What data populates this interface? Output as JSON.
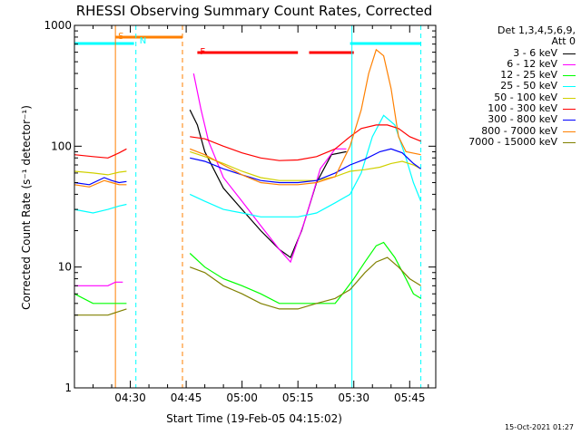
{
  "chart_data": {
    "type": "line",
    "title": "RHESSI Observing Summary Count Rates, Corrected",
    "xlabel": "Start Time (19-Feb-05 04:15:02)",
    "ylabel": "Corrected Count Rate (s⁻¹ detector⁻¹)",
    "yscale": "log",
    "ylim": [
      1,
      1000
    ],
    "xlim_minutes": [
      0,
      97
    ],
    "x_tick_minutes": [
      15,
      30,
      45,
      60,
      75,
      90
    ],
    "x_tick_labels": [
      "04:30",
      "04:45",
      "05:00",
      "05:15",
      "05:30",
      "05:45"
    ],
    "y_tick_values": [
      1,
      10,
      100,
      1000
    ],
    "y_tick_labels": [
      "1",
      "10",
      "100",
      "1000"
    ],
    "legend_header": [
      "Det 1,3,4,5,6,9,",
      "Att 0"
    ],
    "series": [
      {
        "name": "3 - 6 keV",
        "color": "#000000",
        "points": [
          [
            31,
            200
          ],
          [
            33,
            150
          ],
          [
            35,
            90
          ],
          [
            40,
            45
          ],
          [
            45,
            30
          ],
          [
            50,
            20
          ],
          [
            55,
            14
          ],
          [
            58,
            12
          ],
          [
            61,
            20
          ],
          [
            65,
            50
          ],
          [
            69,
            85
          ],
          [
            73,
            90
          ]
        ]
      },
      {
        "name": "6 - 12 keV",
        "color": "#ff00ff",
        "points": [
          [
            0,
            7
          ],
          [
            3,
            7
          ],
          [
            6,
            7
          ],
          [
            9,
            7
          ],
          [
            11,
            7.5
          ],
          [
            13,
            7.5
          ],
          [
            32,
            400
          ],
          [
            34,
            200
          ],
          [
            36,
            110
          ],
          [
            40,
            55
          ],
          [
            45,
            35
          ],
          [
            50,
            22
          ],
          [
            55,
            14
          ],
          [
            58,
            11
          ],
          [
            62,
            25
          ],
          [
            66,
            65
          ],
          [
            70,
            95
          ],
          [
            73,
            95
          ]
        ]
      },
      {
        "name": "12 - 25 keV",
        "color": "#00ff00",
        "points": [
          [
            0,
            6
          ],
          [
            5,
            5
          ],
          [
            9,
            5
          ],
          [
            14,
            5
          ],
          [
            31,
            13
          ],
          [
            35,
            10
          ],
          [
            40,
            8
          ],
          [
            45,
            7
          ],
          [
            50,
            6
          ],
          [
            55,
            5
          ],
          [
            60,
            5
          ],
          [
            65,
            5
          ],
          [
            70,
            5
          ],
          [
            72,
            6
          ],
          [
            75,
            8
          ],
          [
            78,
            11
          ],
          [
            81,
            15
          ],
          [
            83,
            16
          ],
          [
            86,
            12
          ],
          [
            89,
            8
          ],
          [
            91,
            6
          ],
          [
            93,
            5.5
          ]
        ]
      },
      {
        "name": "25 - 50 keV",
        "color": "#00ffff",
        "points": [
          [
            0,
            30
          ],
          [
            5,
            28
          ],
          [
            9,
            30
          ],
          [
            12,
            32
          ],
          [
            14,
            33
          ],
          [
            31,
            40
          ],
          [
            35,
            35
          ],
          [
            40,
            30
          ],
          [
            45,
            28
          ],
          [
            50,
            26
          ],
          [
            55,
            26
          ],
          [
            60,
            26
          ],
          [
            65,
            28
          ],
          [
            70,
            34
          ],
          [
            74,
            40
          ],
          [
            77,
            60
          ],
          [
            80,
            120
          ],
          [
            83,
            180
          ],
          [
            86,
            150
          ],
          [
            89,
            80
          ],
          [
            91,
            50
          ],
          [
            93,
            35
          ]
        ]
      },
      {
        "name": "50 - 100 keV",
        "color": "#d0d000",
        "points": [
          [
            0,
            62
          ],
          [
            5,
            60
          ],
          [
            9,
            58
          ],
          [
            12,
            61
          ],
          [
            14,
            62
          ],
          [
            31,
            90
          ],
          [
            35,
            82
          ],
          [
            40,
            72
          ],
          [
            45,
            62
          ],
          [
            50,
            55
          ],
          [
            55,
            52
          ],
          [
            60,
            52
          ],
          [
            65,
            52
          ],
          [
            70,
            56
          ],
          [
            74,
            62
          ],
          [
            78,
            64
          ],
          [
            82,
            67
          ],
          [
            85,
            72
          ],
          [
            88,
            75
          ],
          [
            91,
            70
          ],
          [
            93,
            65
          ]
        ]
      },
      {
        "name": "100 - 300 keV",
        "color": "#ff0000",
        "points": [
          [
            0,
            85
          ],
          [
            5,
            82
          ],
          [
            9,
            80
          ],
          [
            12,
            88
          ],
          [
            14,
            95
          ],
          [
            31,
            120
          ],
          [
            35,
            115
          ],
          [
            40,
            100
          ],
          [
            45,
            88
          ],
          [
            50,
            80
          ],
          [
            55,
            76
          ],
          [
            60,
            77
          ],
          [
            65,
            82
          ],
          [
            70,
            95
          ],
          [
            74,
            120
          ],
          [
            77,
            140
          ],
          [
            81,
            150
          ],
          [
            84,
            150
          ],
          [
            87,
            140
          ],
          [
            90,
            120
          ],
          [
            93,
            110
          ]
        ]
      },
      {
        "name": "300 - 800 keV",
        "color": "#0000ff",
        "points": [
          [
            0,
            50
          ],
          [
            4,
            48
          ],
          [
            8,
            55
          ],
          [
            10,
            52
          ],
          [
            12,
            50
          ],
          [
            14,
            51
          ],
          [
            31,
            80
          ],
          [
            35,
            75
          ],
          [
            40,
            65
          ],
          [
            45,
            58
          ],
          [
            50,
            52
          ],
          [
            55,
            50
          ],
          [
            60,
            50
          ],
          [
            65,
            52
          ],
          [
            70,
            60
          ],
          [
            74,
            70
          ],
          [
            78,
            78
          ],
          [
            82,
            90
          ],
          [
            85,
            95
          ],
          [
            88,
            88
          ],
          [
            91,
            72
          ],
          [
            93,
            65
          ]
        ]
      },
      {
        "name": "800 - 7000 keV",
        "color": "#ff8000",
        "points": [
          [
            0,
            48
          ],
          [
            4,
            46
          ],
          [
            8,
            52
          ],
          [
            10,
            50
          ],
          [
            12,
            48
          ],
          [
            14,
            48
          ],
          [
            31,
            95
          ],
          [
            35,
            85
          ],
          [
            40,
            70
          ],
          [
            45,
            58
          ],
          [
            50,
            50
          ],
          [
            55,
            48
          ],
          [
            60,
            48
          ],
          [
            65,
            50
          ],
          [
            70,
            56
          ],
          [
            74,
            100
          ],
          [
            77,
            200
          ],
          [
            79,
            400
          ],
          [
            81,
            630
          ],
          [
            83,
            560
          ],
          [
            85,
            300
          ],
          [
            87,
            120
          ],
          [
            89,
            90
          ],
          [
            93,
            85
          ]
        ]
      },
      {
        "name": "7000 - 15000 keV",
        "color": "#808000",
        "points": [
          [
            0,
            4
          ],
          [
            5,
            4
          ],
          [
            9,
            4
          ],
          [
            14,
            4.5
          ],
          [
            31,
            10
          ],
          [
            35,
            9
          ],
          [
            40,
            7
          ],
          [
            45,
            6
          ],
          [
            50,
            5
          ],
          [
            55,
            4.5
          ],
          [
            60,
            4.5
          ],
          [
            65,
            5
          ],
          [
            70,
            5.5
          ],
          [
            74,
            6.5
          ],
          [
            78,
            9
          ],
          [
            81,
            11
          ],
          [
            84,
            12
          ],
          [
            87,
            10
          ],
          [
            90,
            8
          ],
          [
            93,
            7
          ]
        ]
      }
    ],
    "attenuator_bars": [
      {
        "start": 0,
        "end": 16,
        "color": "#00ffff"
      },
      {
        "start": 74,
        "end": 93,
        "color": "#00ffff"
      }
    ],
    "flag_bars": [
      {
        "label": "S",
        "start": 11,
        "end": 29,
        "color": "#ff8000"
      },
      {
        "label": "F",
        "start": 33,
        "end": 60,
        "color": "#ff0000"
      },
      {
        "label": "",
        "start": 63,
        "end": 75,
        "color": "#ff0000"
      }
    ],
    "marker_lines": [
      {
        "x": 11,
        "label": "S",
        "color": "#ff8000",
        "style": "solid"
      },
      {
        "x": 16.5,
        "label": "N",
        "color": "#00ffff",
        "style": "dashed"
      },
      {
        "x": 29,
        "label": "F",
        "color": "#ff8000",
        "style": "dashed"
      },
      {
        "x": 74.5,
        "label": "",
        "color": "#00ffff",
        "style": "solid"
      },
      {
        "x": 93,
        "label": "",
        "color": "#00ffff",
        "style": "dashed"
      }
    ]
  },
  "footer": {
    "timestamp": "15-Oct-2021 01:27"
  }
}
